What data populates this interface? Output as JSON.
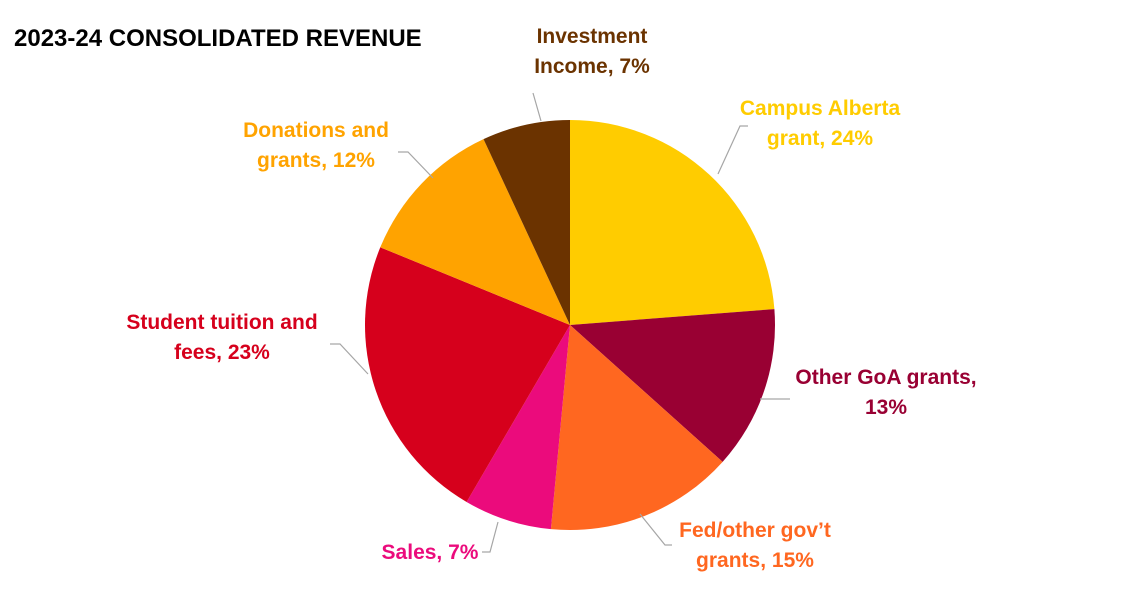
{
  "chart_data": {
    "type": "pie",
    "title": "2023-24 CONSOLIDATED REVENUE",
    "start": "top",
    "direction": "clockwise",
    "slices": [
      {
        "name": "Campus Alberta grant",
        "value": 24,
        "label_lines": [
          "Campus Alberta",
          "grant, 24%"
        ],
        "color": "#FFCC00"
      },
      {
        "name": "Other GoA grants",
        "value": 13,
        "label_lines": [
          "Other GoA grants,",
          "13%"
        ],
        "color": "#990033"
      },
      {
        "name": "Fed/other gov’t grants",
        "value": 15,
        "label_lines": [
          "Fed/other gov’t",
          "grants, 15%"
        ],
        "color": "#FF6720"
      },
      {
        "name": "Sales",
        "value": 7,
        "label_lines": [
          "Sales, 7%"
        ],
        "color": "#EB0B7C"
      },
      {
        "name": "Student tuition and fees",
        "value": 23,
        "label_lines": [
          "Student tuition and",
          "fees, 23%"
        ],
        "color": "#D6001C"
      },
      {
        "name": "Donations and grants",
        "value": 12,
        "label_lines": [
          "Donations and",
          "grants, 12%"
        ],
        "color": "#FFA300"
      },
      {
        "name": "Investment Income",
        "value": 7,
        "label_lines": [
          "Investment",
          "Income, 7%"
        ],
        "color": "#6B3300"
      }
    ],
    "legend": "none",
    "data_labels": "outside with leader lines"
  }
}
